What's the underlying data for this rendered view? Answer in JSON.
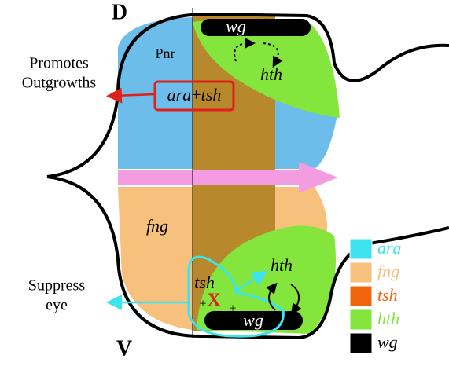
{
  "axis_labels": {
    "dorsal": "D",
    "ventral": "V"
  },
  "top": {
    "pnr": "Pnr",
    "wg": "wg",
    "hth": "hth"
  },
  "box": {
    "gene1": "ara",
    "plus": "+",
    "gene2": "tsh"
  },
  "bottom": {
    "fng": "fng",
    "tsh": "tsh",
    "x": "X",
    "plus_left": "+",
    "plus_right": "+",
    "hth": "hth",
    "wg": "wg"
  },
  "annotations": [
    {
      "lines": [
        "Promotes",
        "Outgrowths"
      ]
    },
    {
      "lines": [
        "Suppress",
        "eye"
      ]
    }
  ],
  "legend": [
    {
      "label": "ara",
      "color": "#3de3ee"
    },
    {
      "label": "fng",
      "color": "#f7c07c"
    },
    {
      "label": "tsh",
      "color": "#f0640c"
    },
    {
      "label": "hth",
      "color": "#84e63c"
    },
    {
      "label": "wg",
      "color": "#000000"
    }
  ]
}
